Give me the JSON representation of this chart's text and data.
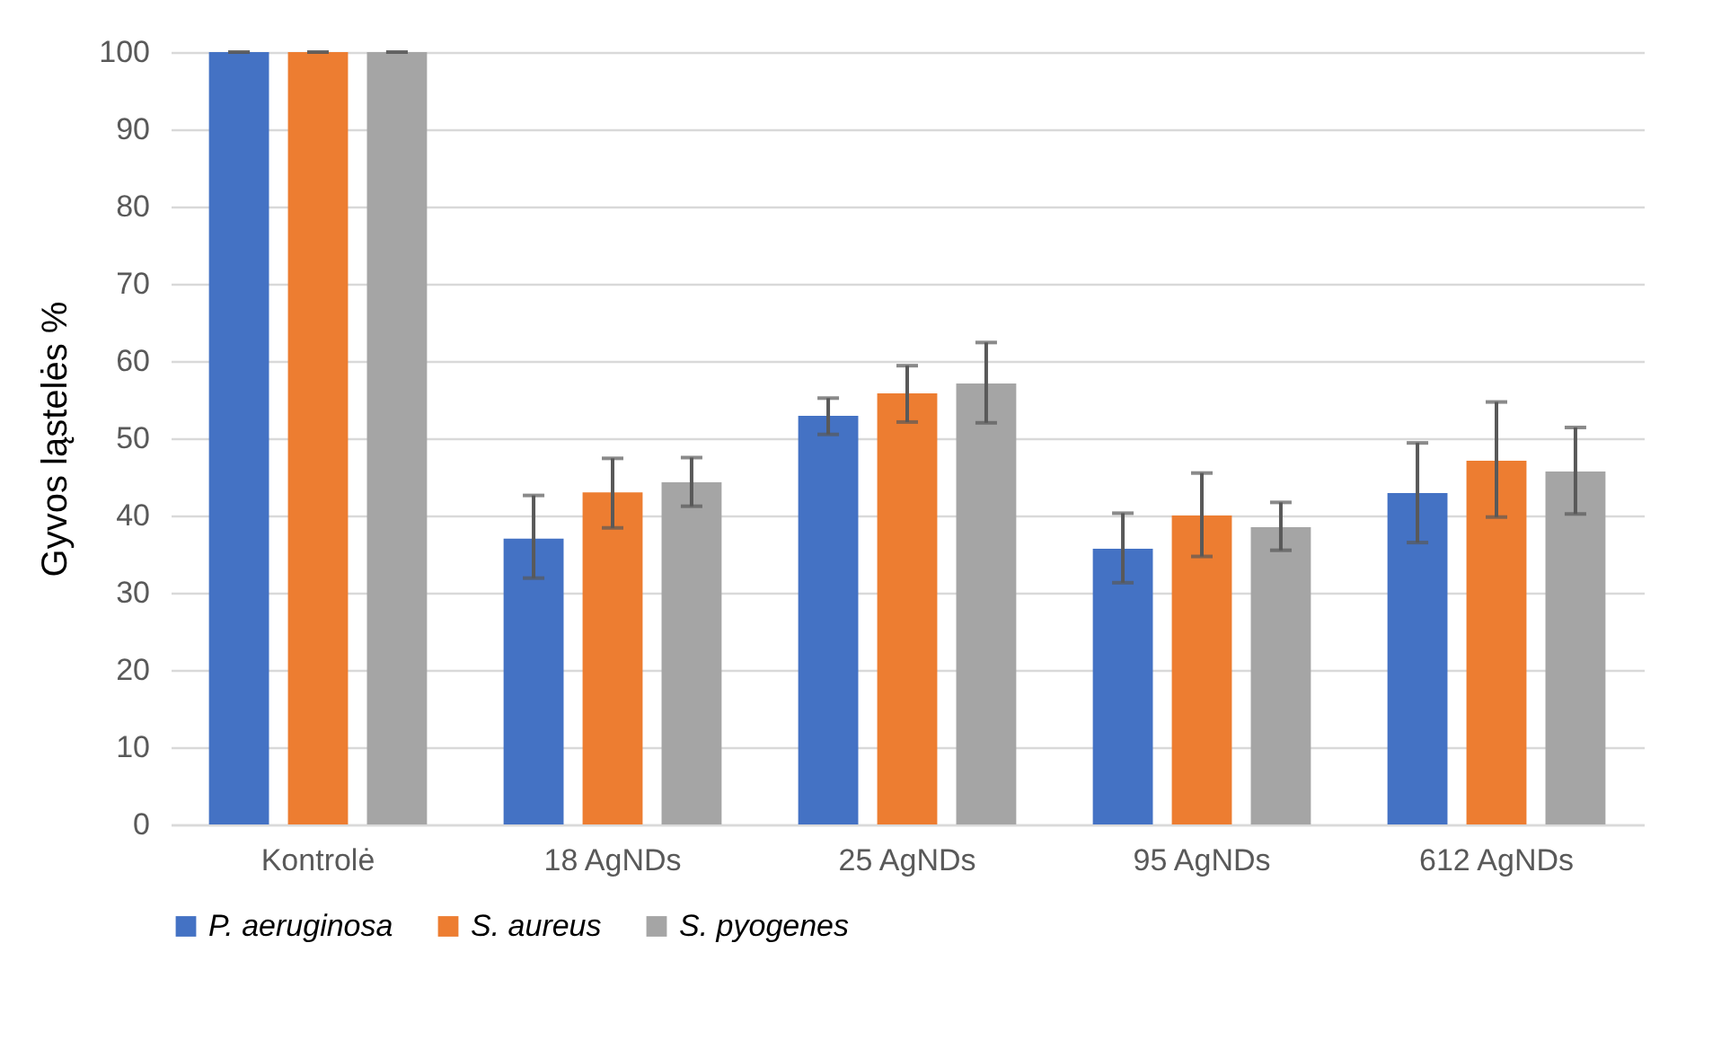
{
  "chart_data": {
    "type": "bar",
    "ylabel": "Gyvos ląstelės %",
    "categories": [
      "Kontrolė",
      "18 AgNDs",
      "25 AgNDs",
      "95 AgNDs",
      "612 AgNDs"
    ],
    "series": [
      {
        "name": "P. aeruginosa",
        "color": "#4472c4",
        "values": [
          100,
          37,
          52.9,
          35.7,
          42.9
        ],
        "errors": [
          0,
          [
            31.9,
            42.6
          ],
          [
            50.5,
            55.2
          ],
          [
            31.3,
            40.3
          ],
          [
            36.5,
            49.4
          ]
        ]
      },
      {
        "name": "S. aureus",
        "color": "#ed7d31",
        "values": [
          100,
          43,
          55.8,
          40,
          47.1
        ],
        "errors": [
          0,
          [
            38.4,
            47.4
          ],
          [
            52.1,
            59.4
          ],
          [
            34.7,
            45.5
          ],
          [
            39.8,
            54.7
          ]
        ]
      },
      {
        "name": "S. pyogenes",
        "color": "#a5a5a5",
        "values": [
          100,
          44.3,
          57.1,
          38.5,
          45.7
        ],
        "errors": [
          0,
          [
            41.2,
            47.5
          ],
          [
            52,
            62.4
          ],
          [
            35.5,
            41.7
          ],
          [
            40.2,
            51.4
          ]
        ]
      }
    ],
    "ylim": [
      0,
      100
    ],
    "yticks": [
      0,
      10,
      20,
      30,
      40,
      50,
      60,
      70,
      80,
      90,
      100
    ],
    "grid": "y",
    "legend": "bottom"
  }
}
